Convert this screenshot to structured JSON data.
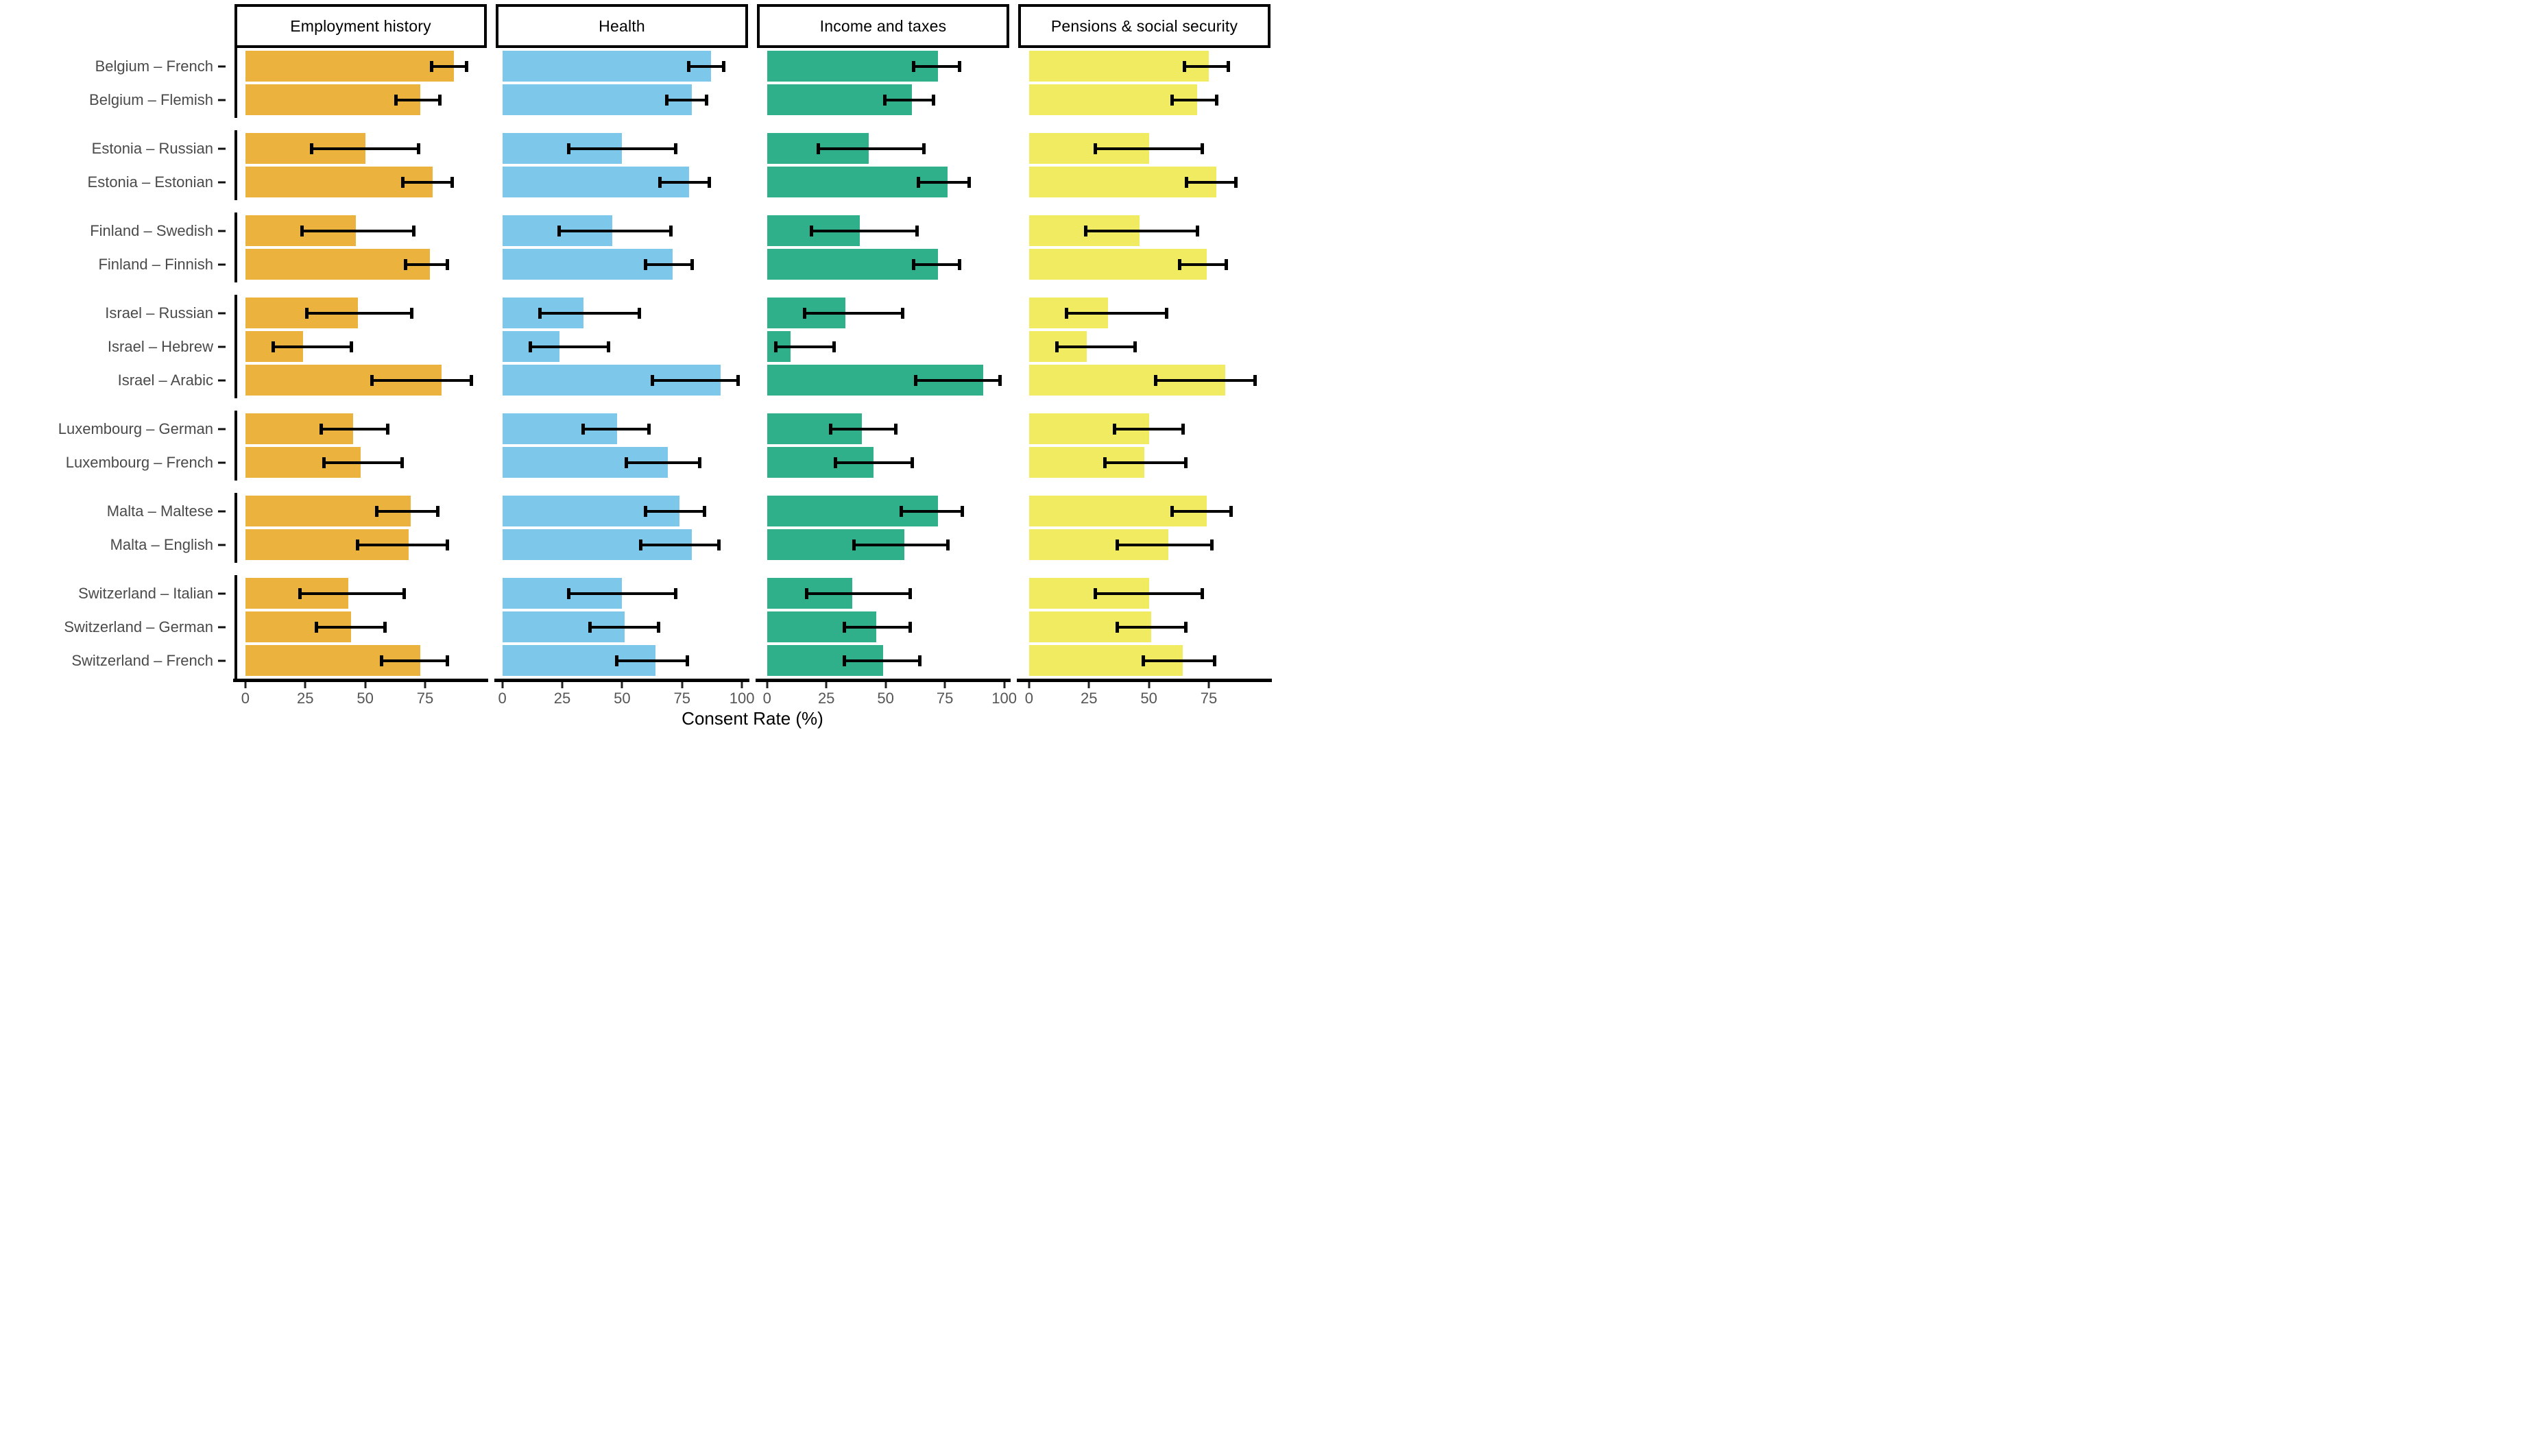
{
  "chart_data": {
    "type": "bar",
    "orientation": "horizontal",
    "title": "",
    "xlabel": "Consent Rate (%)",
    "grid": "off",
    "legend": "none",
    "error_bars": "95% confidence intervals",
    "facets": [
      {
        "label": "Employment history",
        "color": "#EBB23E",
        "ticks": [
          0,
          25,
          50,
          75
        ],
        "xlim": [
          0,
          97
        ],
        "x_origin_pct": 4.3,
        "pct_per_unit": 0.95
      },
      {
        "label": "Health",
        "color": "#7DC7EA",
        "ticks": [
          0,
          25,
          50,
          75,
          100
        ],
        "xlim": [
          0,
          102
        ],
        "x_origin_pct": 2.6,
        "pct_per_unit": 0.95
      },
      {
        "label": "Income and taxes",
        "color": "#2FAF8A",
        "ticks": [
          0,
          25,
          50,
          75,
          100
        ],
        "xlim": [
          0,
          102
        ],
        "x_origin_pct": 4.0,
        "pct_per_unit": 0.94
      },
      {
        "label": "Pensions & social security",
        "color": "#F0EB61",
        "ticks": [
          0,
          25,
          50,
          75
        ],
        "xlim": [
          0,
          97
        ],
        "x_origin_pct": 4.3,
        "pct_per_unit": 0.95
      }
    ],
    "categories": [
      "Belgium – French",
      "Belgium – Flemish",
      "Estonia – Russian",
      "Estonia – Estonian",
      "Finland – Swedish",
      "Finland – Finnish",
      "Israel – Russian",
      "Israel – Hebrew",
      "Israel – Arabic",
      "Luxembourg – German",
      "Luxembourg – French",
      "Malta – Maltese",
      "Malta – English",
      "Switzerland – Italian",
      "Switzerland – German",
      "Switzerland – French"
    ],
    "groups": [
      {
        "country": "Belgium",
        "rows": [
          {
            "label": "Belgium – French",
            "values": [
              87,
              87,
              72,
              75
            ],
            "ci_low": [
              77,
              77,
              61,
              64
            ],
            "ci_high": [
              93,
              93,
              82,
              84
            ]
          },
          {
            "label": "Belgium – Flemish",
            "values": [
              73,
              79,
              61,
              70
            ],
            "ci_low": [
              62,
              68,
              49,
              59
            ],
            "ci_high": [
              82,
              86,
              71,
              79
            ]
          }
        ]
      },
      {
        "country": "Estonia",
        "rows": [
          {
            "label": "Estonia – Russian",
            "values": [
              50,
              50,
              43,
              50
            ],
            "ci_low": [
              27,
              27,
              21,
              27
            ],
            "ci_high": [
              73,
              73,
              67,
              73
            ]
          },
          {
            "label": "Estonia – Estonian",
            "values": [
              78,
              78,
              76,
              78
            ],
            "ci_low": [
              65,
              65,
              63,
              65
            ],
            "ci_high": [
              87,
              87,
              86,
              87
            ]
          }
        ]
      },
      {
        "country": "Finland",
        "rows": [
          {
            "label": "Finland – Swedish",
            "values": [
              46,
              46,
              39,
              46
            ],
            "ci_low": [
              23,
              23,
              18,
              23
            ],
            "ci_high": [
              71,
              71,
              64,
              71
            ]
          },
          {
            "label": "Finland – Finnish",
            "values": [
              77,
              71,
              72,
              74
            ],
            "ci_low": [
              66,
              59,
              61,
              62
            ],
            "ci_high": [
              85,
              80,
              82,
              83
            ]
          }
        ]
      },
      {
        "country": "Israel",
        "rows": [
          {
            "label": "Israel – Russian",
            "values": [
              47,
              34,
              33,
              33
            ],
            "ci_low": [
              25,
              15,
              15,
              15
            ],
            "ci_high": [
              70,
              58,
              58,
              58
            ]
          },
          {
            "label": "Israel – Hebrew",
            "values": [
              24,
              24,
              10,
              24
            ],
            "ci_low": [
              11,
              11,
              3,
              11
            ],
            "ci_high": [
              45,
              45,
              29,
              45
            ]
          },
          {
            "label": "Israel – Arabic",
            "values": [
              82,
              91,
              91,
              82
            ],
            "ci_low": [
              52,
              62,
              62,
              52
            ],
            "ci_high": [
              95,
              99,
              99,
              95
            ]
          }
        ]
      },
      {
        "country": "Luxembourg",
        "rows": [
          {
            "label": "Luxembourg – German",
            "values": [
              45,
              48,
              40,
              50
            ],
            "ci_low": [
              31,
              33,
              26,
              35
            ],
            "ci_high": [
              60,
              62,
              55,
              65
            ]
          },
          {
            "label": "Luxembourg – French",
            "values": [
              48,
              69,
              45,
              48
            ],
            "ci_low": [
              32,
              51,
              28,
              31
            ],
            "ci_high": [
              66,
              83,
              62,
              66
            ]
          }
        ]
      },
      {
        "country": "Malta",
        "rows": [
          {
            "label": "Malta – Maltese",
            "values": [
              69,
              74,
              72,
              74
            ],
            "ci_low": [
              54,
              59,
              56,
              59
            ],
            "ci_high": [
              81,
              85,
              83,
              85
            ]
          },
          {
            "label": "Malta – English",
            "values": [
              68,
              79,
              58,
              58
            ],
            "ci_low": [
              46,
              57,
              36,
              36
            ],
            "ci_high": [
              85,
              91,
              77,
              77
            ]
          }
        ]
      },
      {
        "country": "Switzerland",
        "rows": [
          {
            "label": "Switzerland – Italian",
            "values": [
              43,
              50,
              36,
              50
            ],
            "ci_low": [
              22,
              27,
              16,
              27
            ],
            "ci_high": [
              67,
              73,
              61,
              73
            ]
          },
          {
            "label": "Switzerland – German",
            "values": [
              44,
              51,
              46,
              51
            ],
            "ci_low": [
              29,
              36,
              32,
              36
            ],
            "ci_high": [
              59,
              66,
              61,
              66
            ]
          },
          {
            "label": "Switzerland – French",
            "values": [
              73,
              64,
              49,
              64
            ],
            "ci_low": [
              56,
              47,
              32,
              47
            ],
            "ci_high": [
              85,
              78,
              65,
              78
            ]
          }
        ]
      }
    ]
  }
}
